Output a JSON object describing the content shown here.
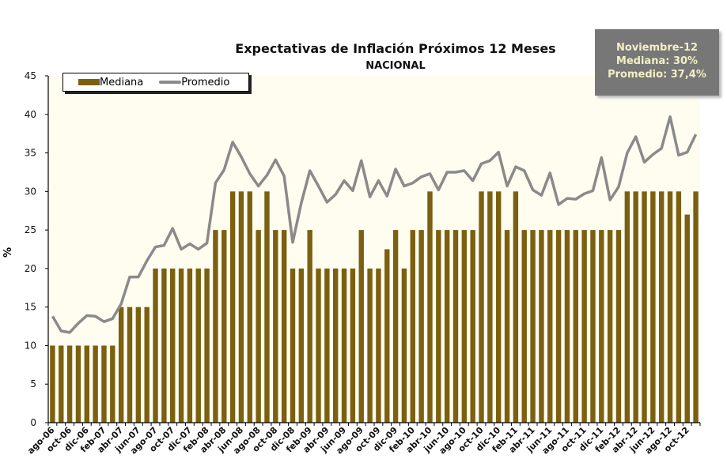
{
  "chart_data": {
    "type": "bar+line",
    "title": "Expectativas de Inflación Próximos 12 Meses",
    "subtitle": "NACIONAL",
    "ylabel": "%",
    "xlabel": "",
    "ylim": [
      0,
      45
    ],
    "y_ticks": [
      0,
      5,
      10,
      15,
      20,
      25,
      30,
      35,
      40,
      45
    ],
    "grid": false,
    "legend_position": "top-left",
    "x_tick_labels": [
      "ago-06",
      "oct-06",
      "dic-06",
      "feb-07",
      "abr-07",
      "jun-07",
      "ago-07",
      "oct-07",
      "dic-07",
      "feb-08",
      "abr-08",
      "jun-08",
      "ago-08",
      "oct-08",
      "dic-08",
      "feb-09",
      "abr-09",
      "jun-09",
      "ago-09",
      "oct-09",
      "dic-09",
      "feb-10",
      "abr-10",
      "jun-10",
      "ago-10",
      "oct-10",
      "dic-10",
      "feb-11",
      "abr-11",
      "jun-11",
      "ago-11",
      "oct-11",
      "dic-11",
      "feb-12",
      "abr-12",
      "jun-12",
      "ago-12",
      "oct-12"
    ],
    "x_range": [
      "ago-06",
      "nov-12"
    ],
    "series": [
      {
        "name": "Mediana",
        "type": "bar",
        "color": "#7a6010",
        "values": [
          10,
          10,
          10,
          10,
          10,
          10,
          10,
          10,
          15,
          15,
          15,
          15,
          20,
          20,
          20,
          20,
          20,
          20,
          20,
          25,
          25,
          30,
          30,
          30,
          25,
          30,
          25,
          25,
          20,
          20,
          25,
          20,
          20,
          20,
          20,
          20,
          25,
          20,
          20,
          22.5,
          25,
          20,
          25,
          25,
          30,
          25,
          25,
          25,
          25,
          25,
          30,
          30,
          30,
          25,
          30,
          25,
          25,
          25,
          25,
          25,
          25,
          25,
          25,
          25,
          25,
          25,
          25,
          30,
          30,
          30,
          30,
          30,
          30,
          30,
          27,
          30
        ]
      },
      {
        "name": "Promedio",
        "type": "line",
        "color": "#8a8a8a",
        "values": [
          13.8,
          11.9,
          11.7,
          12.9,
          13.9,
          13.8,
          13.1,
          13.5,
          15.4,
          18.9,
          18.9,
          21.0,
          22.8,
          23.0,
          25.2,
          22.5,
          23.2,
          22.5,
          23.3,
          31.1,
          32.8,
          36.4,
          34.5,
          32.3,
          30.7,
          32.1,
          34.1,
          32.0,
          23.4,
          28.5,
          32.7,
          30.7,
          28.6,
          29.6,
          31.4,
          30.1,
          34.0,
          29.3,
          31.4,
          29.4,
          32.9,
          30.7,
          31.1,
          31.9,
          32.3,
          30.2,
          32.5,
          32.5,
          32.7,
          31.4,
          33.6,
          34.0,
          35.1,
          30.7,
          33.2,
          32.7,
          30.2,
          29.5,
          32.4,
          28.3,
          29.1,
          29.0,
          29.7,
          30.1,
          34.4,
          28.9,
          30.6,
          35.0,
          37.1,
          33.8,
          34.8,
          35.6,
          39.7,
          34.7,
          35.1,
          37.4
        ]
      }
    ]
  },
  "info_box": {
    "line1": "Noviembre-12",
    "line2": "Mediana: 30%",
    "line3": "Promedio: 37,4%",
    "background": "#777777",
    "text_color": "#f3efc4"
  },
  "legend": {
    "mediana": "Mediana",
    "promedio": "Promedio"
  }
}
